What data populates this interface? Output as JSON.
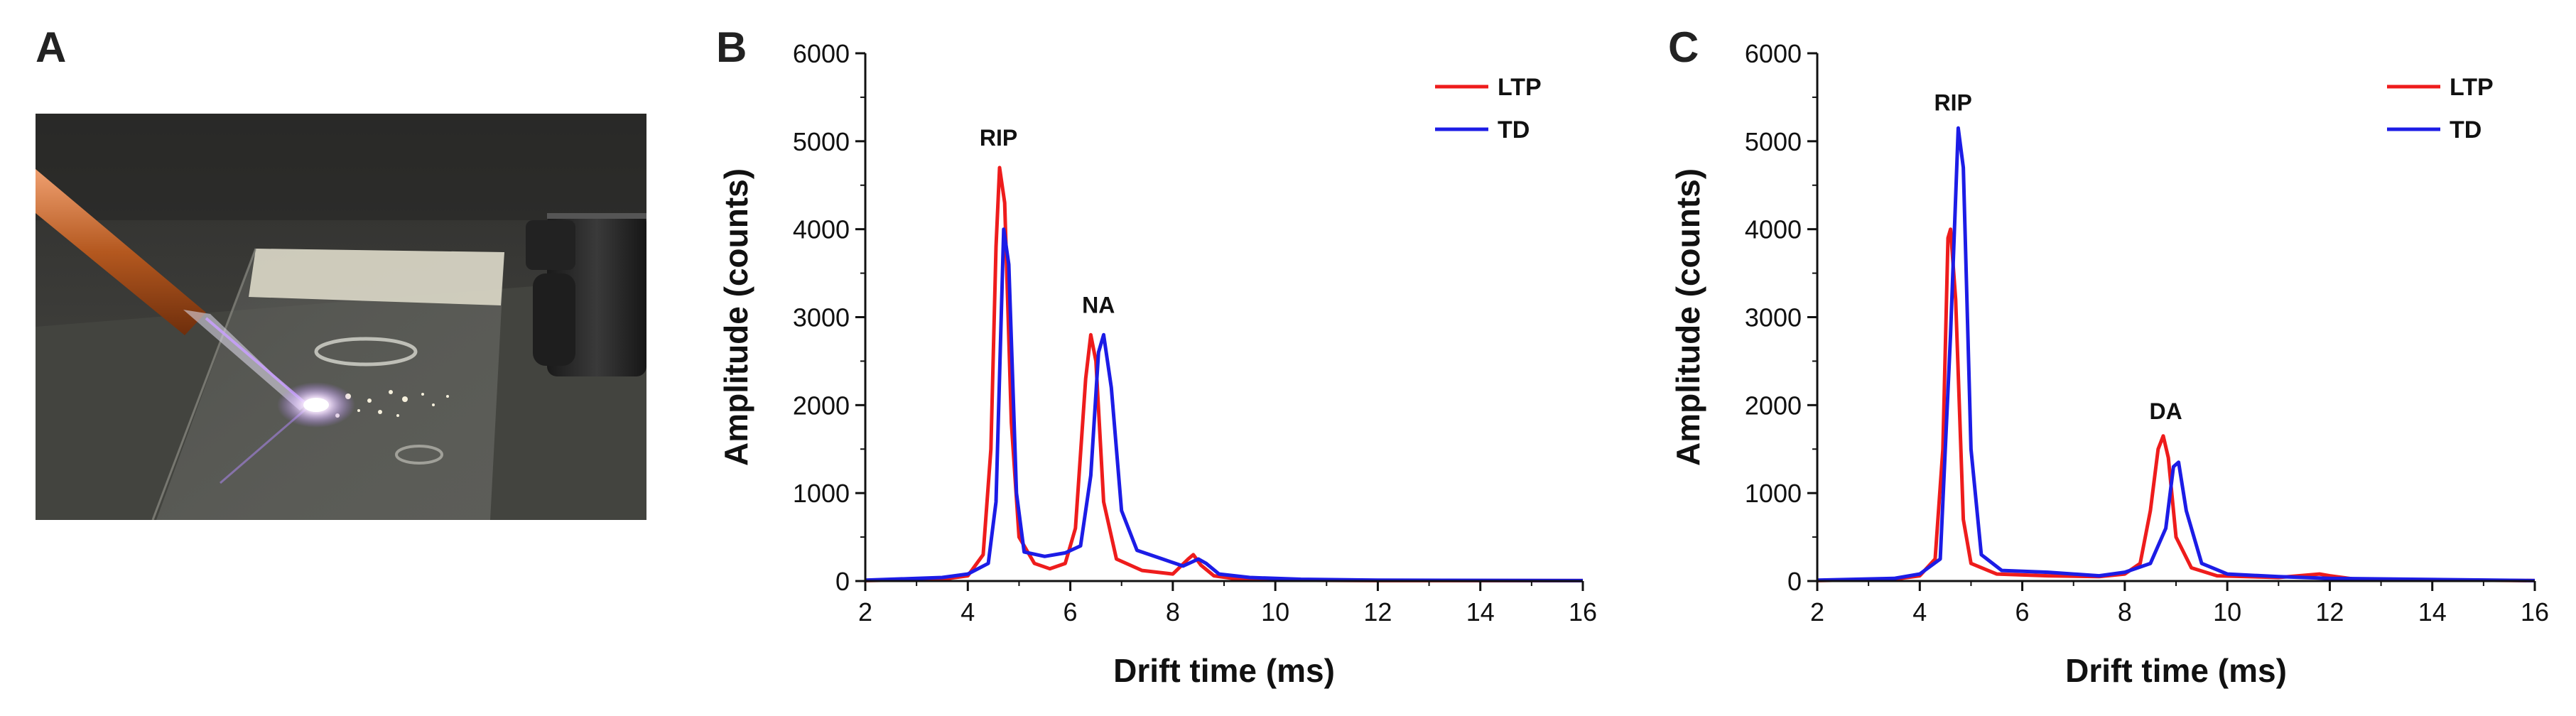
{
  "panels": {
    "a": {
      "letter": "A"
    },
    "b": {
      "letter": "B"
    },
    "c": {
      "letter": "C"
    }
  },
  "colors": {
    "ltp": "#ee1c1c",
    "td": "#1c1ce6",
    "axis": "#111111"
  },
  "photo": {
    "icons": [
      "glass-slide",
      "plasma-probe",
      "inlet-nozzle"
    ]
  },
  "chart_data": [
    {
      "type": "line",
      "xlabel": "Drift time (ms)",
      "ylabel": "Amplitude (counts)",
      "xlim": [
        2,
        16
      ],
      "ylim": [
        0,
        6000
      ],
      "x_ticks": [
        2,
        4,
        6,
        8,
        10,
        12,
        14,
        16
      ],
      "y_ticks": [
        0,
        1000,
        2000,
        3000,
        4000,
        5000,
        6000
      ],
      "grid": false,
      "legend_position": "top-right",
      "series": [
        {
          "name": "LTP",
          "color": "#ee1c1c",
          "points": [
            [
              2.0,
              5
            ],
            [
              3.5,
              20
            ],
            [
              4.0,
              60
            ],
            [
              4.3,
              300
            ],
            [
              4.45,
              1500
            ],
            [
              4.55,
              3800
            ],
            [
              4.62,
              4700
            ],
            [
              4.72,
              4300
            ],
            [
              4.85,
              1800
            ],
            [
              5.0,
              500
            ],
            [
              5.3,
              200
            ],
            [
              5.6,
              140
            ],
            [
              5.9,
              200
            ],
            [
              6.1,
              600
            ],
            [
              6.3,
              2300
            ],
            [
              6.4,
              2800
            ],
            [
              6.5,
              2500
            ],
            [
              6.65,
              900
            ],
            [
              6.9,
              250
            ],
            [
              7.4,
              120
            ],
            [
              8.0,
              80
            ],
            [
              8.3,
              250
            ],
            [
              8.4,
              300
            ],
            [
              8.55,
              180
            ],
            [
              8.8,
              60
            ],
            [
              9.3,
              20
            ],
            [
              10,
              10
            ],
            [
              12,
              5
            ],
            [
              16,
              5
            ]
          ]
        },
        {
          "name": "TD",
          "color": "#1c1ce6",
          "points": [
            [
              2.0,
              10
            ],
            [
              3.5,
              40
            ],
            [
              4.0,
              80
            ],
            [
              4.4,
              200
            ],
            [
              4.55,
              900
            ],
            [
              4.7,
              4000
            ],
            [
              4.8,
              3600
            ],
            [
              4.95,
              1000
            ],
            [
              5.1,
              330
            ],
            [
              5.5,
              280
            ],
            [
              5.9,
              320
            ],
            [
              6.2,
              400
            ],
            [
              6.4,
              1200
            ],
            [
              6.55,
              2600
            ],
            [
              6.65,
              2800
            ],
            [
              6.8,
              2200
            ],
            [
              7.0,
              800
            ],
            [
              7.3,
              350
            ],
            [
              7.8,
              250
            ],
            [
              8.2,
              170
            ],
            [
              8.5,
              250
            ],
            [
              8.65,
              200
            ],
            [
              8.9,
              80
            ],
            [
              9.5,
              40
            ],
            [
              10.5,
              20
            ],
            [
              12,
              10
            ],
            [
              16,
              5
            ]
          ]
        }
      ],
      "annotations": [
        {
          "text": "RIP",
          "x": 4.6,
          "y": 4950
        },
        {
          "text": "NA",
          "x": 6.55,
          "y": 3050
        }
      ]
    },
    {
      "type": "line",
      "xlabel": "Drift time (ms)",
      "ylabel": "Amplitude (counts)",
      "xlim": [
        2,
        16
      ],
      "ylim": [
        0,
        6000
      ],
      "x_ticks": [
        2,
        4,
        6,
        8,
        10,
        12,
        14,
        16
      ],
      "y_ticks": [
        0,
        1000,
        2000,
        3000,
        4000,
        5000,
        6000
      ],
      "grid": false,
      "legend_position": "top-right",
      "series": [
        {
          "name": "LTP",
          "color": "#ee1c1c",
          "points": [
            [
              2.0,
              5
            ],
            [
              3.5,
              20
            ],
            [
              4.0,
              60
            ],
            [
              4.3,
              250
            ],
            [
              4.45,
              1500
            ],
            [
              4.55,
              3900
            ],
            [
              4.6,
              4000
            ],
            [
              4.7,
              3200
            ],
            [
              4.85,
              700
            ],
            [
              5.0,
              200
            ],
            [
              5.5,
              80
            ],
            [
              6.5,
              60
            ],
            [
              7.5,
              50
            ],
            [
              8.0,
              80
            ],
            [
              8.3,
              200
            ],
            [
              8.5,
              800
            ],
            [
              8.65,
              1500
            ],
            [
              8.75,
              1650
            ],
            [
              8.85,
              1400
            ],
            [
              9.0,
              500
            ],
            [
              9.3,
              150
            ],
            [
              9.8,
              60
            ],
            [
              11,
              40
            ],
            [
              11.8,
              80
            ],
            [
              12.0,
              60
            ],
            [
              12.5,
              20
            ],
            [
              16,
              5
            ]
          ]
        },
        {
          "name": "TD",
          "color": "#1c1ce6",
          "points": [
            [
              2.0,
              10
            ],
            [
              3.5,
              30
            ],
            [
              4.0,
              80
            ],
            [
              4.4,
              250
            ],
            [
              4.6,
              2800
            ],
            [
              4.75,
              5150
            ],
            [
              4.85,
              4700
            ],
            [
              5.0,
              1500
            ],
            [
              5.2,
              300
            ],
            [
              5.6,
              120
            ],
            [
              6.5,
              100
            ],
            [
              7.5,
              60
            ],
            [
              8.0,
              100
            ],
            [
              8.5,
              200
            ],
            [
              8.8,
              600
            ],
            [
              8.95,
              1300
            ],
            [
              9.05,
              1350
            ],
            [
              9.2,
              800
            ],
            [
              9.5,
              200
            ],
            [
              10,
              80
            ],
            [
              11,
              50
            ],
            [
              12,
              30
            ],
            [
              16,
              5
            ]
          ]
        }
      ],
      "annotations": [
        {
          "text": "RIP",
          "x": 4.65,
          "y": 5350
        },
        {
          "text": "DA",
          "x": 8.8,
          "y": 1840
        }
      ]
    }
  ]
}
